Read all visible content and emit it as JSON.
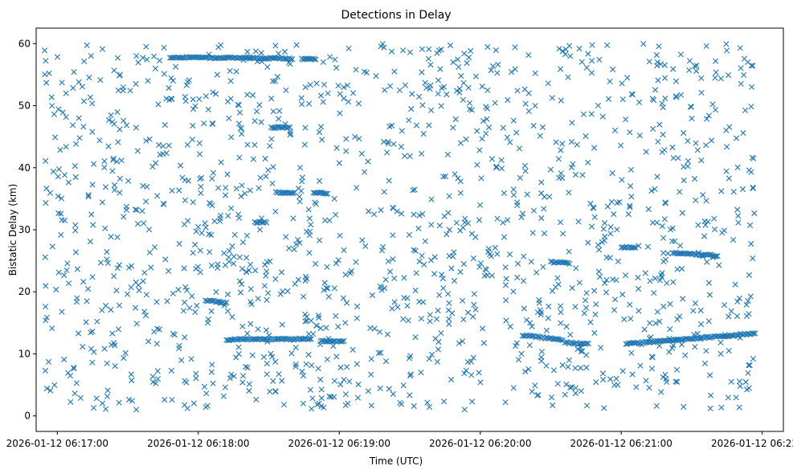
{
  "chart_data": {
    "type": "scatter",
    "title": "Detections in Delay",
    "xlabel": "Time (UTC)",
    "ylabel": "Bistatic Delay (km)",
    "marker": "x",
    "color": "#1f77b4",
    "x_unit": "seconds after 2026-01-12 06:17:00",
    "xlim": [
      -9,
      309
    ],
    "ylim": [
      -2.5,
      62.5
    ],
    "x_ticks": [
      {
        "value": 0,
        "label": "2026-01-12 06:17:00"
      },
      {
        "value": 60,
        "label": "2026-01-12 06:18:00"
      },
      {
        "value": 120,
        "label": "2026-01-12 06:19:00"
      },
      {
        "value": 180,
        "label": "2026-01-12 06:20:00"
      },
      {
        "value": 240,
        "label": "2026-01-12 06:21:00"
      },
      {
        "value": 300,
        "label": "2026-01-12 06:22:00"
      }
    ],
    "y_ticks": [
      {
        "value": 0,
        "label": "0"
      },
      {
        "value": 10,
        "label": "10"
      },
      {
        "value": 20,
        "label": "20"
      },
      {
        "value": 30,
        "label": "30"
      },
      {
        "value": 40,
        "label": "40"
      },
      {
        "value": 50,
        "label": "50"
      },
      {
        "value": 60,
        "label": "60"
      }
    ],
    "scatter_region": {
      "x_range": [
        -6,
        297
      ],
      "y_range": [
        1,
        60
      ]
    },
    "tracks": [
      {
        "x_start": 48,
        "x_end": 100,
        "y_start": 57.8,
        "y_end": 57.6
      },
      {
        "x_start": 104,
        "x_end": 110,
        "y_start": 57.5,
        "y_end": 57.5
      },
      {
        "x_start": 63,
        "x_end": 72,
        "y_start": 18.6,
        "y_end": 18.2
      },
      {
        "x_start": 72,
        "x_end": 108,
        "y_start": 12.3,
        "y_end": 12.4
      },
      {
        "x_start": 112,
        "x_end": 122,
        "y_start": 12.1,
        "y_end": 12.0
      },
      {
        "x_start": 93,
        "x_end": 101,
        "y_start": 36.0,
        "y_end": 36.0
      },
      {
        "x_start": 109,
        "x_end": 115,
        "y_start": 36.0,
        "y_end": 35.9
      },
      {
        "x_start": 84,
        "x_end": 89,
        "y_start": 31.2,
        "y_end": 31.2
      },
      {
        "x_start": 198,
        "x_end": 215,
        "y_start": 13.0,
        "y_end": 12.2
      },
      {
        "x_start": 216,
        "x_end": 226,
        "y_start": 11.8,
        "y_end": 11.6
      },
      {
        "x_start": 242,
        "x_end": 297,
        "y_start": 11.6,
        "y_end": 13.3
      },
      {
        "x_start": 262,
        "x_end": 281,
        "y_start": 26.3,
        "y_end": 25.8
      },
      {
        "x_start": 240,
        "x_end": 246,
        "y_start": 27.2,
        "y_end": 27.2
      },
      {
        "x_start": 210,
        "x_end": 218,
        "y_start": 24.8,
        "y_end": 24.6
      },
      {
        "x_start": 91,
        "x_end": 99,
        "y_start": 46.5,
        "y_end": 46.5
      }
    ]
  }
}
